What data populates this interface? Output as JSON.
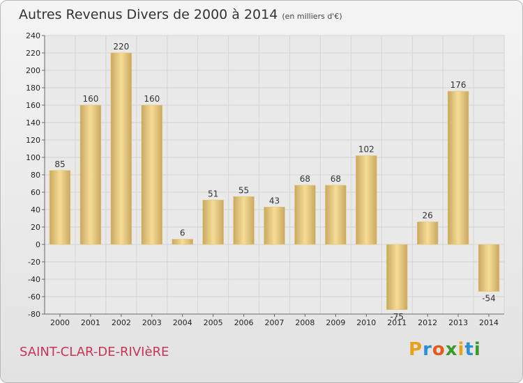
{
  "header": {
    "title": "Autres Revenus Divers de 2000 à 2014",
    "subtitle": "(en milliers d'€)"
  },
  "footer": {
    "commune": "SAINT-CLAR-DE-RIVIèRE",
    "logo": [
      "P",
      "r",
      "o",
      "x",
      "i",
      "t",
      "i"
    ],
    "logo_colors": [
      "#e8a11a",
      "#2a8fd6",
      "#e35a1b",
      "#3b9a2b",
      "#e8a11a",
      "#2a8fd6",
      "#3b9a2b"
    ]
  },
  "chart_data": {
    "type": "bar",
    "title": "Autres Revenus Divers de 2000 à 2014",
    "subtitle": "(en milliers d'€)",
    "categories": [
      "2000",
      "2001",
      "2002",
      "2003",
      "2004",
      "2005",
      "2006",
      "2007",
      "2008",
      "2009",
      "2010",
      "2011",
      "2012",
      "2013",
      "2014"
    ],
    "values": [
      85,
      160,
      220,
      160,
      6,
      51,
      55,
      43,
      68,
      68,
      102,
      -75,
      26,
      176,
      -54
    ],
    "ylim": [
      -80,
      240
    ],
    "yticks": [
      -80,
      -60,
      -40,
      -20,
      0,
      20,
      40,
      60,
      80,
      100,
      120,
      140,
      160,
      180,
      200,
      220,
      240
    ],
    "grid": true,
    "colors": {
      "bar_light": "#f6dc96",
      "bar_dark": "#c8a860",
      "grid": "#d4d4d4"
    }
  }
}
